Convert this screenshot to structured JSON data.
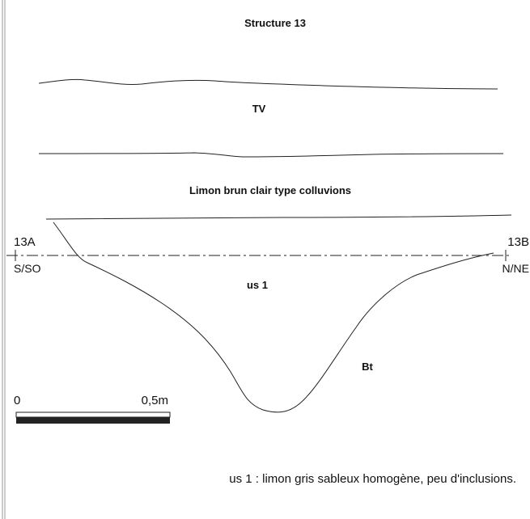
{
  "title": "Structure 13",
  "layers": {
    "top": "TV",
    "middle": "Limon brun clair type colluvions",
    "fill": "us 1",
    "base": "Bt"
  },
  "section": {
    "left_label": "13A",
    "left_orientation": "S/SO",
    "right_label": "13B",
    "right_orientation": "N/NE"
  },
  "scale": {
    "start": "0",
    "end": "0,5m"
  },
  "legend": "us 1 : limon gris sableux homogène, peu d'inclusions."
}
